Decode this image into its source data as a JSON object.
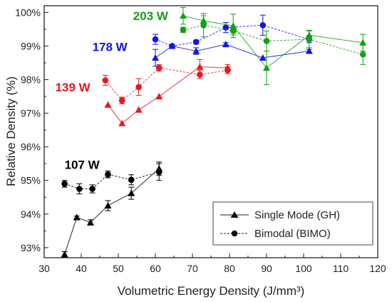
{
  "chart_data": {
    "type": "scatter",
    "xlabel": "Volumetric Energy Density (J/mm³)",
    "ylabel": "Relative Density (%)",
    "xlim": [
      30,
      120
    ],
    "ylim": [
      92.7,
      100.2
    ],
    "xticks": [
      "30",
      "40",
      "50",
      "60",
      "70",
      "80",
      "90",
      "100",
      "110",
      "120"
    ],
    "yticks": [
      "93%",
      "94%",
      "95%",
      "96%",
      "97%",
      "98%",
      "99%",
      "100%"
    ],
    "legend_position": "bottom-right",
    "legend": [
      {
        "label": "Single Mode (GH)",
        "marker": "triangle",
        "line": "solid"
      },
      {
        "label": "Bimodal (BIMO)",
        "marker": "circle",
        "line": "dashed"
      }
    ],
    "groups": [
      {
        "power": "107 W",
        "color": "#000000",
        "label_anchor": [
          35.5,
          95.35
        ],
        "single_mode": {
          "x": [
            35.5,
            38.8,
            42.5,
            47.2,
            53.5,
            61.0
          ],
          "y": [
            92.8,
            93.9,
            93.75,
            94.25,
            94.62,
            95.35
          ],
          "err": [
            0.08,
            0.04,
            0.08,
            0.15,
            0.18,
            0.2
          ]
        },
        "bimodal": {
          "x": [
            35.5,
            39.5,
            43.0,
            47.2,
            53.5,
            61.0
          ],
          "y": [
            94.9,
            94.75,
            94.75,
            95.18,
            95.02,
            95.25
          ],
          "err": [
            0.1,
            0.15,
            0.12,
            0.1,
            0.15,
            0.25
          ]
        }
      },
      {
        "power": "139 W",
        "color": "#e8171f",
        "label_anchor": [
          33.0,
          97.65
        ],
        "single_mode": {
          "x": [
            47.2,
            51.0,
            55.5,
            61.0,
            72.0,
            79.5
          ],
          "y": [
            97.25,
            96.7,
            97.1,
            97.5,
            98.38,
            98.35
          ],
          "err": [
            0,
            0,
            0,
            0,
            0.22,
            0.1
          ]
        },
        "bimodal": {
          "x": [
            46.5,
            51.0,
            55.5,
            61.0,
            72.0,
            79.5
          ],
          "y": [
            97.98,
            97.38,
            97.78,
            98.35,
            98.15,
            98.28
          ],
          "err": [
            0.15,
            0.1,
            0.25,
            0.1,
            0.12,
            0.1
          ]
        }
      },
      {
        "power": "178 W",
        "color": "#1414e6",
        "label_anchor": [
          43.0,
          98.85
        ],
        "single_mode": {
          "x": [
            60.0,
            64.5,
            71.0,
            79.0,
            89.0,
            101.5
          ],
          "y": [
            98.65,
            99.0,
            98.85,
            99.05,
            98.65,
            98.85
          ],
          "err": [
            0.25,
            0,
            0.1,
            0.05,
            0,
            0.05
          ]
        },
        "bimodal": {
          "x": [
            60.0,
            64.5,
            71.0,
            79.0,
            89.0,
            101.5
          ],
          "y": [
            99.2,
            99.0,
            99.12,
            99.55,
            99.62,
            99.2
          ],
          "err": [
            0.15,
            0.05,
            0.05,
            0.15,
            0.3,
            0.1
          ]
        }
      },
      {
        "power": "203 W",
        "color": "#12a012",
        "label_anchor": [
          54.0,
          99.78
        ],
        "single_mode": {
          "x": [
            67.5,
            73.0,
            81.0,
            90.0,
            101.5,
            116.0
          ],
          "y": [
            99.9,
            99.75,
            99.6,
            98.35,
            99.32,
            99.1
          ],
          "err": [
            0.25,
            0.15,
            0.35,
            0.5,
            0.15,
            0.25
          ]
        },
        "bimodal": {
          "x": [
            67.5,
            73.0,
            81.0,
            90.0,
            101.5,
            116.0
          ],
          "y": [
            99.48,
            99.62,
            99.45,
            99.15,
            99.2,
            98.75
          ],
          "err": [
            0.08,
            0.35,
            0.12,
            0.3,
            0.25,
            0.3
          ]
        }
      }
    ]
  }
}
